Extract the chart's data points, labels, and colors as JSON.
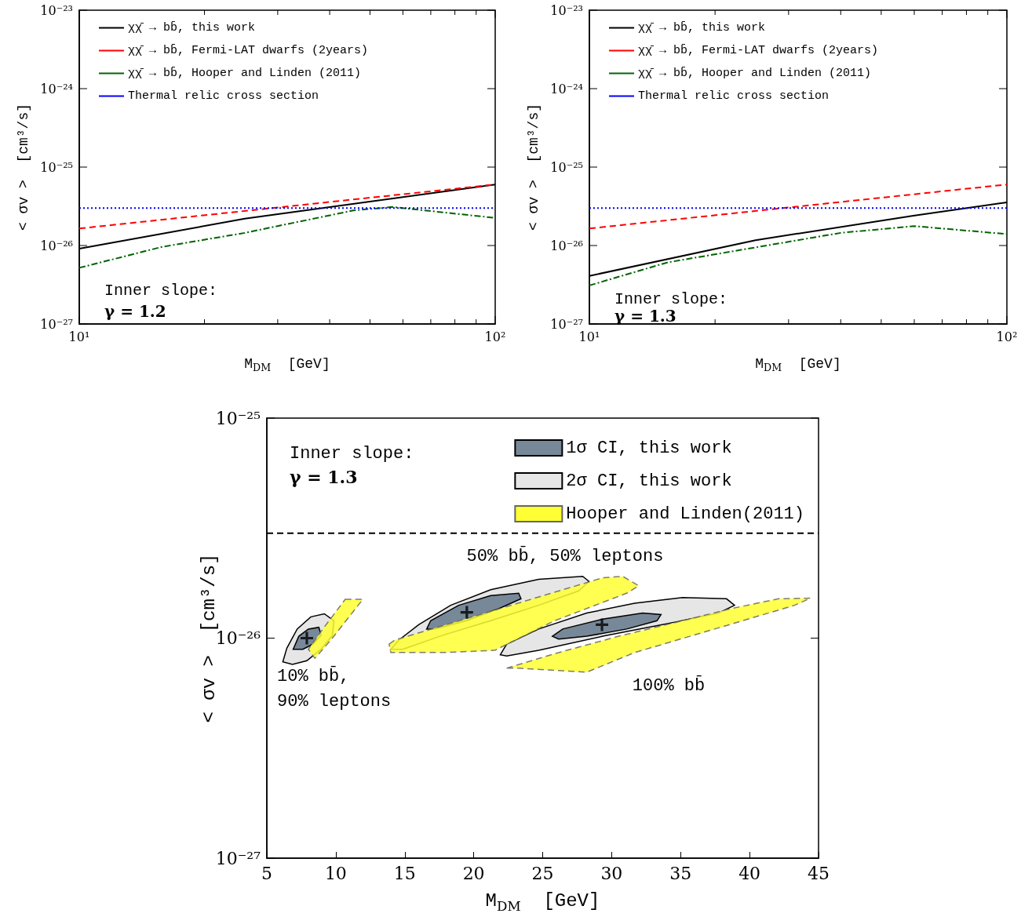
{
  "chart_data": [
    {
      "type": "line",
      "xlabel": "M$_{DM}$  [GeV]",
      "ylabel": "< σv >  [cm³/s]",
      "log": "xy",
      "legend": "top left",
      "xlim": [
        10,
        100
      ],
      "xticks": [
        {
          "value": 10,
          "label": "10¹"
        },
        {
          "value": 20,
          "label": null
        },
        {
          "value": 30,
          "label": null
        },
        {
          "value": 40,
          "label": null
        },
        {
          "value": 50,
          "label": null
        },
        {
          "value": 60,
          "label": null
        },
        {
          "value": 70,
          "label": null
        },
        {
          "value": 80,
          "label": null
        },
        {
          "value": 90,
          "label": null
        },
        {
          "value": 100,
          "label": "10²"
        }
      ],
      "ylim": [
        1e-27,
        1e-23
      ],
      "yticks": [
        {
          "value": 1e-27,
          "label": "10⁻²⁷"
        },
        {
          "value": 1e-26,
          "label": "10⁻²⁶"
        },
        {
          "value": 1e-25,
          "label": "10⁻²⁵"
        },
        {
          "value": 1e-24,
          "label": "10⁻²⁴"
        },
        {
          "value": 1e-23,
          "label": "10⁻²³"
        }
      ],
      "annotations": [
        "Inner slope:",
        "γ = 1.2"
      ],
      "series": [
        {
          "name": "χχ̄ → bb̄, this work",
          "color": "#000000",
          "line_style": "solid",
          "x": [
            10,
            25,
            100
          ],
          "values": [
            9.1e-27,
            2.2e-26,
            6e-26
          ]
        },
        {
          "name": "χχ̄ → bb̄, Fermi-LAT dwarfs (2years)",
          "color": "#ff0000",
          "line_style": "dashed",
          "x": [
            10,
            100
          ],
          "values": [
            1.65e-26,
            6e-26
          ]
        },
        {
          "name": "χχ̄ → bb̄, Hooper and Linden (2011)",
          "color": "#006400",
          "line_style": "dashdot",
          "x": [
            10,
            15.8,
            25,
            45.6,
            56.6,
            100
          ],
          "values": [
            5.2e-27,
            9.6e-27,
            1.45e-26,
            2.8e-26,
            3.1e-26,
            2.25e-26
          ]
        },
        {
          "name": "Thermal relic cross section",
          "color": "#0000ff",
          "line_style": "dotted",
          "x": [
            10,
            100
          ],
          "values": [
            3e-26,
            3e-26
          ]
        }
      ]
    },
    {
      "type": "line",
      "xlabel": "M$_{DM}$  [GeV]",
      "ylabel": "< σv >  [cm³/s]",
      "log": "xy",
      "legend": "top left",
      "xlim": [
        10,
        100
      ],
      "xticks": [
        {
          "value": 10,
          "label": "10¹"
        },
        {
          "value": 20,
          "label": null
        },
        {
          "value": 30,
          "label": null
        },
        {
          "value": 40,
          "label": null
        },
        {
          "value": 50,
          "label": null
        },
        {
          "value": 60,
          "label": null
        },
        {
          "value": 70,
          "label": null
        },
        {
          "value": 80,
          "label": null
        },
        {
          "value": 90,
          "label": null
        },
        {
          "value": 100,
          "label": "10²"
        }
      ],
      "ylim": [
        1e-27,
        1e-23
      ],
      "yticks": [
        {
          "value": 1e-27,
          "label": "10⁻²⁷"
        },
        {
          "value": 1e-26,
          "label": "10⁻²⁶"
        },
        {
          "value": 1e-25,
          "label": "10⁻²⁵"
        },
        {
          "value": 1e-24,
          "label": "10⁻²⁴"
        },
        {
          "value": 1e-23,
          "label": "10⁻²³"
        }
      ],
      "annotations": [
        "Inner slope:",
        "γ = 1.3"
      ],
      "series": [
        {
          "name": "χχ̄ → bb̄, this work",
          "color": "#000000",
          "line_style": "solid",
          "x": [
            10,
            25,
            59.7,
            100
          ],
          "values": [
            4.1e-27,
            1.17e-26,
            2.4e-26,
            3.55e-26
          ]
        },
        {
          "name": "χχ̄ → bb̄, Fermi-LAT dwarfs (2years)",
          "color": "#ff0000",
          "line_style": "dashed",
          "x": [
            10,
            100
          ],
          "values": [
            1.65e-26,
            6e-26
          ]
        },
        {
          "name": "χχ̄ → bb̄, Hooper and Linden (2011)",
          "color": "#006400",
          "line_style": "dashdot",
          "x": [
            10,
            15.4,
            40,
            60,
            100
          ],
          "values": [
            3.1e-27,
            6.1e-27,
            1.45e-26,
            1.77e-26,
            1.4e-26
          ]
        },
        {
          "name": "Thermal relic cross section",
          "color": "#0000ff",
          "line_style": "dotted",
          "x": [
            10,
            100
          ],
          "values": [
            3e-26,
            3e-26
          ]
        }
      ]
    },
    {
      "type": "area",
      "xlabel": "M$_{DM}$  [GeV]",
      "ylabel": "< σv >  [cm³/s]",
      "log": "y",
      "legend": "top right",
      "xlim": [
        5,
        45
      ],
      "xticks": [
        5,
        10,
        15,
        20,
        25,
        30,
        35,
        40,
        45
      ],
      "ylim": [
        1e-27,
        1e-25
      ],
      "yticks": [
        {
          "value": 1e-27,
          "label": "10⁻²⁷"
        },
        {
          "value": 1e-26,
          "label": "10⁻²⁶"
        },
        {
          "value": 1e-25,
          "label": "10⁻²⁵"
        }
      ],
      "ref_lines": [
        {
          "axis": "y",
          "value": 3e-26,
          "color": "#000000",
          "line_style": "dashed"
        }
      ],
      "annotations": [
        "Inner slope:",
        "γ = 1.3",
        "50% bb̄, 50% leptons",
        "10% bb̄,\n90% leptons",
        "100% bb̄"
      ],
      "series": [
        {
          "name": "1σ CI, this work",
          "color": "#778899",
          "line_style": "solid",
          "x": [
            6.91,
            7.32,
            8.01,
            8.77,
            8.94,
            8.36,
            7.61,
            null,
            16.59,
            16.88,
            18.91,
            21.23,
            23.26,
            23.43,
            21.81,
            19.49,
            17.17,
            null,
            25.7,
            26.45,
            29.35,
            32.25,
            33.58,
            33.29,
            31.09,
            28.19,
            26.16
          ],
          "values": [
            8.9e-27,
            1.02e-26,
            1.1e-26,
            1.12e-26,
            1.03e-26,
            9.4e-27,
            8.9e-27,
            null,
            1.1e-26,
            1.2e-26,
            1.41e-26,
            1.56e-26,
            1.6e-26,
            1.51e-26,
            1.36e-26,
            1.2e-26,
            1.1e-26,
            null,
            1.02e-26,
            1.1e-26,
            1.22e-26,
            1.3e-26,
            1.28e-26,
            1.2e-26,
            1.1e-26,
            1.02e-26,
            9.9e-27
          ]
        },
        {
          "name": "2σ CI, this work",
          "color": "#e6e6e6",
          "line_style": "solid",
          "x": [
            6.16,
            6.45,
            7.2,
            8.19,
            9.17,
            9.87,
            9.75,
            8.94,
            7.9,
            6.86,
            null,
            13.99,
            14.57,
            16.01,
            18.33,
            21.23,
            24.71,
            27.9,
            28.36,
            27.61,
            24.71,
            21.23,
            17.75,
            14.86,
            null,
            21.93,
            22.39,
            24.71,
            28.19,
            31.67,
            35.14,
            38.33,
            38.91,
            37.75,
            34.57,
            29.35,
            24.71,
            22.39
          ],
          "values": [
            7.8e-27,
            9e-27,
            1.1e-26,
            1.25e-26,
            1.29e-26,
            1.2e-26,
            1.03e-26,
            8.9e-27,
            7.9e-27,
            7.6e-27,
            null,
            8.9e-27,
            9.8e-27,
            1.15e-26,
            1.41e-26,
            1.66e-26,
            1.85e-26,
            1.91e-26,
            1.81e-26,
            1.64e-26,
            1.41e-26,
            1.2e-26,
            1.03e-26,
            8.9e-27,
            null,
            8.4e-27,
            9.4e-27,
            1.1e-26,
            1.3e-26,
            1.44e-26,
            1.53e-26,
            1.51e-26,
            1.41e-26,
            1.3e-26,
            1.18e-26,
            1.02e-26,
            8.8e-27,
            8.3e-27
          ]
        },
        {
          "name": "Hooper and Linden(2011)",
          "color": "#ffff33",
          "line_style": "dashed",
          "x": [
            10.68,
            11.96,
            9.64,
            8.48,
            8.01,
            9.06,
            null,
            13.87,
            14.28,
            29.35,
            30.8,
            31.96,
            31.09,
            25.87,
            21.52,
            17.75,
            13.99,
            null,
            22.39,
            25.87,
            30.51,
            35.14,
            38.62,
            42.1,
            44.42,
            43.26,
            37.46,
            31.67,
            28.19,
            23.26
          ],
          "values": [
            1.5e-26,
            1.5e-26,
            9.8e-27,
            8.1e-27,
            8.9e-27,
            1.1e-26,
            null,
            9.4e-27,
            9.8e-27,
            1.88e-26,
            1.91e-26,
            1.73e-26,
            1.6e-26,
            1.2e-26,
            8.8e-27,
            8.6e-27,
            8.6e-27,
            null,
            7.3e-27,
            8.5e-27,
            1.02e-26,
            1.2e-26,
            1.36e-26,
            1.51e-26,
            1.52e-26,
            1.41e-26,
            1.1e-26,
            8.6e-27,
            7e-27,
            7.3e-27
          ]
        },
        {
          "type": "scatter",
          "marker": "cross",
          "color": "#000000",
          "x": [
            7.9,
            19.5,
            29.3
          ],
          "values": [
            1e-26,
            1.31e-26,
            1.15e-26
          ]
        }
      ]
    }
  ]
}
